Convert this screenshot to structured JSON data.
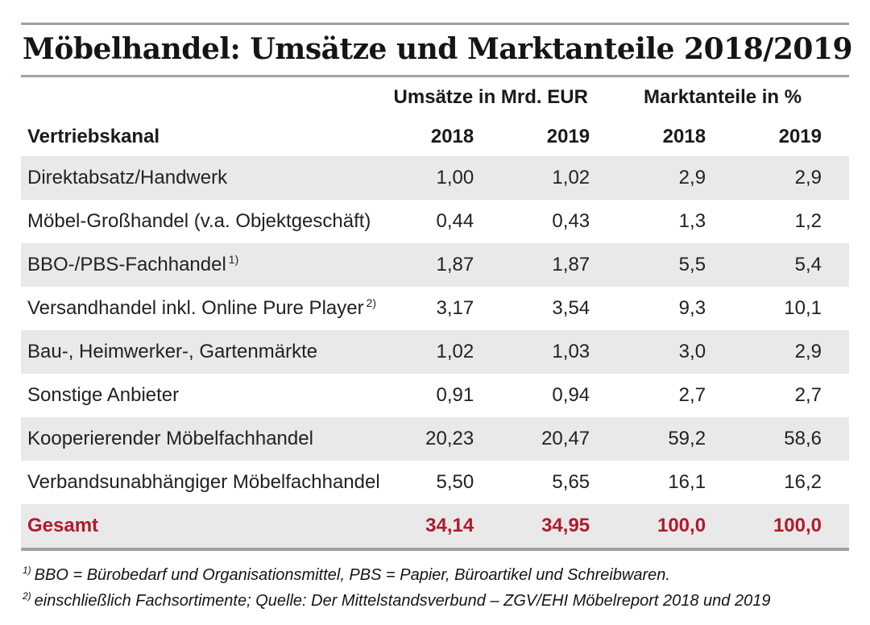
{
  "title": "Möbelhandel: Umsätze und Marktanteile 2018/2019",
  "colors": {
    "rule_gray_green": "#9ba59a",
    "row_alt_gray": "#e9e9e9",
    "total_red": "#b11a2b",
    "text_black": "#1a1a1a"
  },
  "chart_data": {
    "type": "table",
    "title": "Möbelhandel: Umsätze und Marktanteile 2018/2019",
    "column_groups": {
      "umsaetze": "Umsätze in Mrd. EUR",
      "marktanteile": "Marktanteile in %"
    },
    "columns": {
      "label": "Vertriebskanal",
      "u2018": "2018",
      "u2019": "2019",
      "m2018": "2018",
      "m2019": "2019"
    },
    "rows": [
      {
        "label": "Direktabsatz/Handwerk",
        "sup": "",
        "values": [
          "1,00",
          "1,02",
          "2,9",
          "2,9"
        ]
      },
      {
        "label": "Möbel-Großhandel (v.a. Objektgeschäft)",
        "sup": "",
        "values": [
          "0,44",
          "0,43",
          "1,3",
          "1,2"
        ]
      },
      {
        "label": "BBO-/PBS-Fachhandel",
        "sup": "1)",
        "values": [
          "1,87",
          "1,87",
          "5,5",
          "5,4"
        ]
      },
      {
        "label": "Versandhandel inkl. Online Pure Player",
        "sup": "2)",
        "values": [
          "3,17",
          "3,54",
          "9,3",
          "10,1"
        ]
      },
      {
        "label": "Bau-, Heimwerker-, Gartenmärkte",
        "sup": "",
        "values": [
          "1,02",
          "1,03",
          "3,0",
          "2,9"
        ]
      },
      {
        "label": "Sonstige Anbieter",
        "sup": "",
        "values": [
          "0,91",
          "0,94",
          "2,7",
          "2,7"
        ]
      },
      {
        "label": "Kooperierender Möbelfachhandel",
        "sup": "",
        "values": [
          "20,23",
          "20,47",
          "59,2",
          "58,6"
        ]
      },
      {
        "label": "Verbandsunabhängiger Möbelfachhandel",
        "sup": "",
        "values": [
          "5,50",
          "5,65",
          "16,1",
          "16,2"
        ]
      }
    ],
    "total": {
      "label": "Gesamt",
      "values": [
        "34,14",
        "34,95",
        "100,0",
        "100,0"
      ]
    }
  },
  "footnotes": [
    {
      "sup": "1)",
      "text": "BBO = Bürobedarf und Organisationsmittel, PBS = Papier, Büroartikel und Schreibwaren."
    },
    {
      "sup": "2)",
      "text": "einschließlich Fachsortimente; Quelle: Der Mittelstandsverbund – ZGV/EHI Möbelreport 2018 und 2019"
    }
  ]
}
